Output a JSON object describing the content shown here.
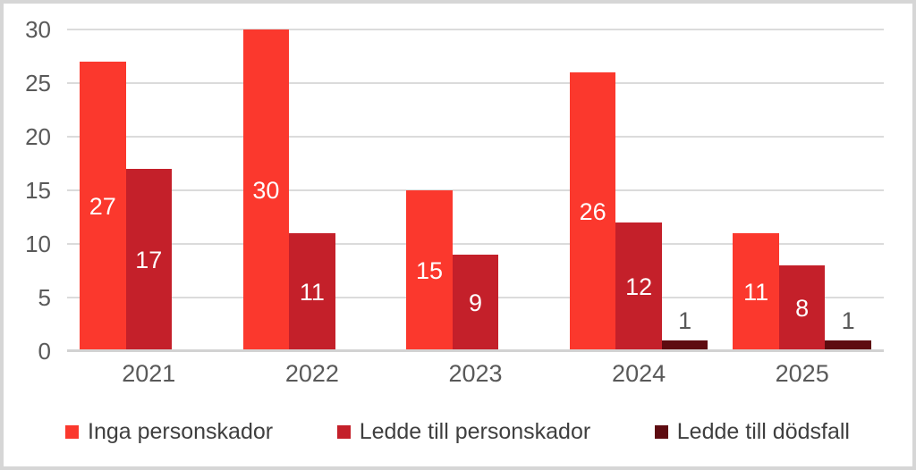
{
  "chart_data": {
    "type": "bar",
    "title": "",
    "xlabel": "",
    "ylabel": "",
    "categories": [
      "2021",
      "2022",
      "2023",
      "2024",
      "2025"
    ],
    "series": [
      {
        "name": "Inga personskador",
        "color": "#fb382d",
        "values": [
          27,
          30,
          15,
          26,
          11
        ]
      },
      {
        "name": "Ledde till personskador",
        "color": "#c4202a",
        "values": [
          17,
          11,
          9,
          12,
          8
        ]
      },
      {
        "name": "Ledde till dödsfall",
        "color": "#5e0c11",
        "values": [
          0,
          0,
          0,
          1,
          1
        ]
      }
    ],
    "ylim": [
      0,
      30
    ],
    "yticks": [
      0,
      5,
      10,
      15,
      20,
      25,
      30
    ],
    "grid": true,
    "legend_position": "bottom",
    "data_labels": "shown; white inside bars, gray above very short bars; labels omitted for zero values"
  },
  "colors": {
    "background": "#ffffff",
    "frame_border": "#d6d6d6",
    "gridline": "#dbdbdb",
    "axis_line": "#d2d2d2",
    "axis_text": "#595959",
    "legend_text": "#3f3f3f",
    "data_label_inside": "#ffffff",
    "data_label_outside": "#595959"
  }
}
